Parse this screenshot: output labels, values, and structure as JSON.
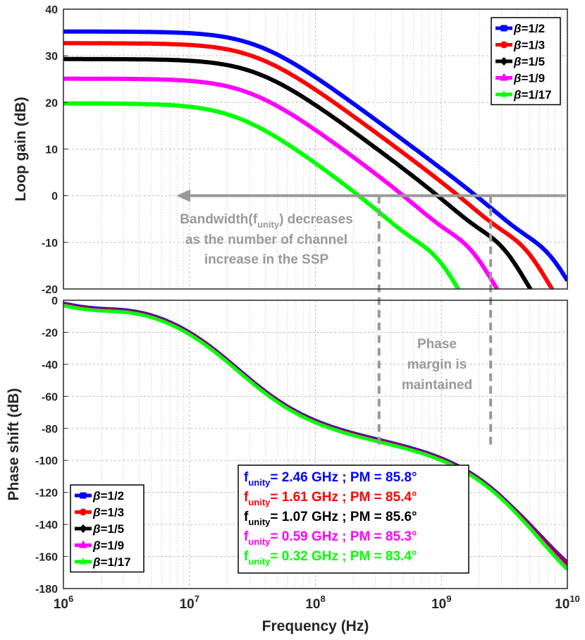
{
  "chart_data": [
    {
      "type": "line",
      "name": "loop-gain",
      "ylabel": "Loop gain (dB)",
      "xlabel": "",
      "xscale": "log",
      "xlim": [
        1000000,
        10000000000
      ],
      "ylim": [
        -20,
        40
      ],
      "yticks": [
        -20,
        -10,
        0,
        10,
        20,
        30,
        40
      ],
      "yticklabels": [
        "-20",
        "-10",
        "0",
        "10",
        "20",
        "30",
        "40"
      ],
      "grid": true,
      "legend_position": "top-right",
      "series": [
        {
          "name": "1/2",
          "color": "#0000ff",
          "marker": "square",
          "dc_gain": 35.2,
          "bandwidth_hz": 2460000000
        },
        {
          "name": "1/3",
          "color": "#ff0000",
          "marker": "circle",
          "dc_gain": 32.7,
          "bandwidth_hz": 1610000000
        },
        {
          "name": "1/5",
          "color": "#000000",
          "marker": "diamond",
          "dc_gain": 29.3,
          "bandwidth_hz": 1070000000
        },
        {
          "name": "1/9",
          "color": "#ff00ff",
          "marker": "triangle",
          "dc_gain": 25.1,
          "bandwidth_hz": 590000000
        },
        {
          "name": "1/17",
          "color": "#00ff00",
          "marker": "star",
          "dc_gain": 19.8,
          "bandwidth_hz": 320000000
        }
      ],
      "zero_line": {
        "y": 0,
        "color": "#999999"
      },
      "annotation": {
        "lines": [
          "Bandwidth(f",
          "unity",
          ") decreases",
          "as the number of channel",
          "increase in the SSP"
        ]
      }
    },
    {
      "type": "line",
      "name": "phase-shift",
      "ylabel": "Phase shift (dB)",
      "xlabel": "Frequency (Hz)",
      "xscale": "log",
      "xlim": [
        1000000,
        10000000000
      ],
      "ylim": [
        -180,
        0
      ],
      "yticks": [
        -180,
        -160,
        -140,
        -120,
        -100,
        -80,
        -60,
        -40,
        -20,
        0
      ],
      "yticklabels": [
        "-180",
        "-160",
        "-140",
        "-120",
        "-100",
        "-80",
        "-60",
        "-40",
        "-20",
        "0"
      ],
      "xticks": [
        1000000,
        10000000,
        100000000,
        1000000000,
        10000000000
      ],
      "xtick_base": "10",
      "xtick_exponents": [
        "6",
        "7",
        "8",
        "9",
        "10"
      ],
      "grid": true,
      "legend_position": "bottom-left",
      "series": [
        {
          "name": "1/2",
          "color": "#0000ff",
          "marker": "square"
        },
        {
          "name": "1/3",
          "color": "#ff0000",
          "marker": "circle"
        },
        {
          "name": "1/5",
          "color": "#000000",
          "marker": "diamond"
        },
        {
          "name": "1/9",
          "color": "#ff00ff",
          "marker": "triangle"
        },
        {
          "name": "1/17",
          "color": "#00ff00",
          "marker": "star"
        }
      ],
      "annotation": {
        "lines": [
          "Phase",
          "margin is",
          "maintained"
        ]
      },
      "stats": [
        {
          "prefix": "f",
          "sub": "unity",
          "text": "= 2.46 GHz ; PM = 85.8°",
          "color": "#0000ff"
        },
        {
          "prefix": "f",
          "sub": "unity",
          "text": "= 1.61 GHz ; PM = 85.4°",
          "color": "#ff0000"
        },
        {
          "prefix": "f",
          "sub": "unity",
          "text": "= 1.07 GHz ; PM = 85.6°",
          "color": "#000000"
        },
        {
          "prefix": "f",
          "sub": "unity",
          "text": "= 0.59 GHz ; PM = 85.3°",
          "color": "#ff00ff"
        },
        {
          "prefix": "f",
          "sub": "unity",
          "text": "= 0.32 GHz ; PM = 83.4°",
          "color": "#00ff00"
        }
      ]
    }
  ],
  "legend_symbol": "β",
  "legend_eq": "=",
  "guide_color": "#999999"
}
